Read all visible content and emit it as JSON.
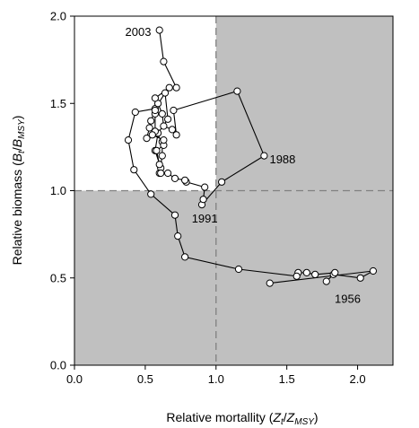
{
  "chart_data": {
    "type": "line",
    "title": "",
    "xlabel": {
      "prefix": "Relative mortallity (",
      "a": "Z",
      "a_sub": "t",
      "slash": "/",
      "b": "Z",
      "b_sub": "MSY",
      "suffix": ")"
    },
    "ylabel": {
      "prefix": "Relative biomass (",
      "a": "B",
      "a_sub": "t",
      "slash": "/",
      "b": "B",
      "b_sub": "MSY",
      "suffix": ")"
    },
    "xlim": [
      0,
      2.25
    ],
    "ylim": [
      0,
      2.0
    ],
    "xticks": [
      "0.0",
      "0.5",
      "1.0",
      "1.5",
      "2.0"
    ],
    "yticks": [
      "0.0",
      "0.5",
      "1.0",
      "1.5",
      "2.0"
    ],
    "reference_lines": {
      "x": 1.0,
      "y": 1.0
    },
    "shaded_region": "all except x < 1 and y > 1",
    "colors": {
      "shade": "#c0c0c0",
      "line": "#000000",
      "marker_fill": "#ffffff",
      "ref_line": "#808080"
    },
    "annotations": [
      {
        "text": "1956",
        "x": 1.93,
        "y": 0.38
      },
      {
        "text": "1988",
        "x": 1.47,
        "y": 1.18
      },
      {
        "text": "1991",
        "x": 0.92,
        "y": 0.84
      },
      {
        "text": "2003",
        "x": 0.45,
        "y": 1.91
      }
    ],
    "series": [
      {
        "points": [
          [
            1.38,
            0.47
          ],
          [
            2.11,
            0.54
          ],
          [
            2.02,
            0.5
          ],
          [
            1.83,
            0.52
          ],
          [
            1.78,
            0.48
          ],
          [
            1.84,
            0.53
          ],
          [
            1.7,
            0.52
          ],
          [
            1.64,
            0.53
          ],
          [
            1.58,
            0.53
          ],
          [
            1.57,
            0.51
          ],
          [
            1.16,
            0.55
          ],
          [
            0.78,
            0.62
          ],
          [
            0.73,
            0.74
          ],
          [
            0.71,
            0.86
          ],
          [
            0.54,
            0.98
          ],
          [
            0.42,
            1.12
          ],
          [
            0.38,
            1.29
          ],
          [
            0.43,
            1.45
          ],
          [
            0.57,
            1.47
          ],
          [
            0.64,
            1.56
          ],
          [
            0.66,
            1.41
          ],
          [
            0.59,
            1.33
          ],
          [
            0.57,
            1.23
          ],
          [
            0.61,
            1.13
          ],
          [
            0.6,
            1.1
          ],
          [
            0.62,
            1.2
          ],
          [
            0.62,
            1.28
          ],
          [
            0.57,
            1.34
          ],
          [
            0.57,
            1.44
          ],
          [
            0.59,
            1.5
          ],
          [
            0.62,
            1.44
          ],
          [
            0.63,
            1.37
          ],
          [
            0.69,
            1.35
          ],
          [
            0.72,
            1.32
          ],
          [
            0.7,
            1.46
          ],
          [
            1.15,
            1.57
          ],
          [
            1.34,
            1.2
          ],
          [
            1.04,
            1.05
          ],
          [
            0.9,
            0.92
          ],
          [
            0.91,
            0.95
          ],
          [
            0.92,
            1.02
          ],
          [
            0.79,
            1.05
          ],
          [
            0.78,
            1.06
          ],
          [
            0.71,
            1.07
          ],
          [
            0.66,
            1.1
          ],
          [
            0.61,
            1.1
          ],
          [
            0.6,
            1.15
          ],
          [
            0.58,
            1.23
          ],
          [
            0.63,
            1.26
          ],
          [
            0.63,
            1.29
          ],
          [
            0.55,
            1.32
          ],
          [
            0.51,
            1.3
          ],
          [
            0.53,
            1.36
          ],
          [
            0.54,
            1.4
          ],
          [
            0.57,
            1.46
          ],
          [
            0.57,
            1.53
          ],
          [
            0.67,
            1.59
          ],
          [
            0.72,
            1.59
          ],
          [
            0.63,
            1.74
          ],
          [
            0.6,
            1.92
          ]
        ]
      }
    ]
  }
}
